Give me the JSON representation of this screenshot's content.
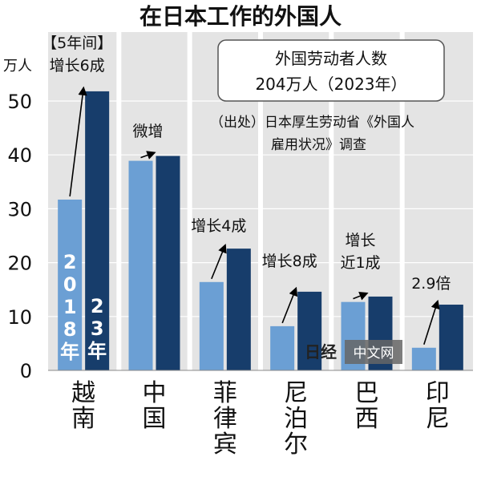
{
  "chart_data": {
    "type": "bar",
    "title": "在日本工作的外国人",
    "ylabel": "万人",
    "ylim": [
      0,
      55
    ],
    "yticks": [
      0,
      10,
      20,
      30,
      40,
      50
    ],
    "grid": true,
    "categories": [
      "越南",
      "中国",
      "菲律宾",
      "尼泊尔",
      "巴西",
      "印尼"
    ],
    "series": [
      {
        "name": "2018年",
        "values": [
          31.7,
          38.9,
          16.4,
          8.2,
          12.7,
          4.2
        ],
        "color": "#6b9fd4"
      },
      {
        "name": "23年",
        "values": [
          51.8,
          39.8,
          22.6,
          14.6,
          13.7,
          12.2
        ],
        "color": "#173d6b"
      }
    ],
    "annotations": [
      "【5年间】\n增长6成",
      "微增",
      "增长4成",
      "增长8成",
      "增长\n近1成",
      "2.9倍"
    ],
    "info_box": {
      "line1": "外国劳动者人数",
      "line2": "204万人（2023年）"
    },
    "source": "（出处）日本厚生劳动省《外国人\n雇用状况》调查",
    "watermark": {
      "mark": "日经",
      "text": "中文网"
    }
  }
}
